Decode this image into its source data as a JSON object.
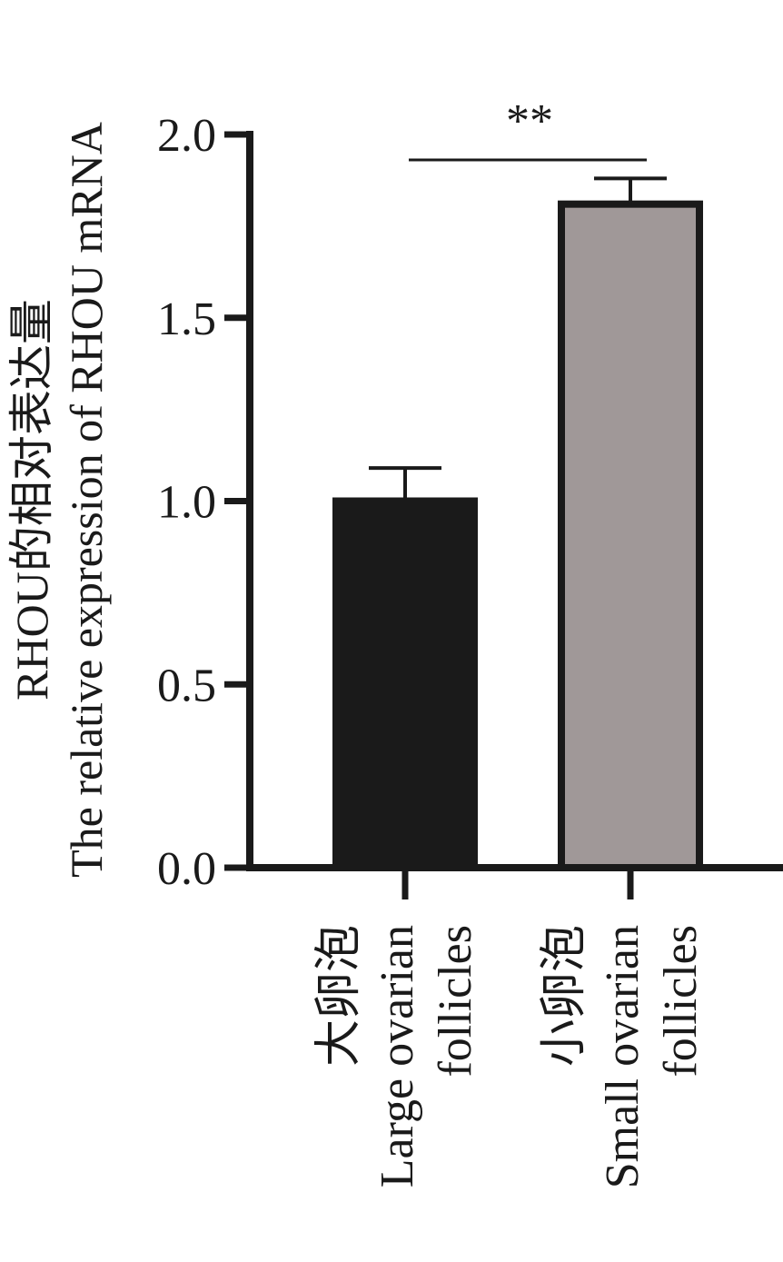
{
  "chart_data": {
    "type": "bar",
    "ylabel": [
      "RHOU的相对表达量",
      "The relative expression of RHOU mRNA"
    ],
    "categories": [
      [
        "大卵泡",
        "Large ovarian",
        "follicles"
      ],
      [
        "小卵泡",
        "Small ovarian",
        "follicles"
      ]
    ],
    "values": [
      1.0,
      1.81
    ],
    "errors": [
      0.09,
      0.07
    ],
    "colors": [
      "#1a1a1a",
      "#a09898"
    ],
    "ylim": [
      0,
      2.0
    ],
    "yticks": [
      {
        "value": 0,
        "label": "0.0"
      },
      {
        "value": 0.5,
        "label": "0.5"
      },
      {
        "value": 1.0,
        "label": "1.0"
      },
      {
        "value": 1.5,
        "label": "1.5"
      },
      {
        "value": 2.0,
        "label": "2.0"
      }
    ],
    "significance": "**"
  }
}
